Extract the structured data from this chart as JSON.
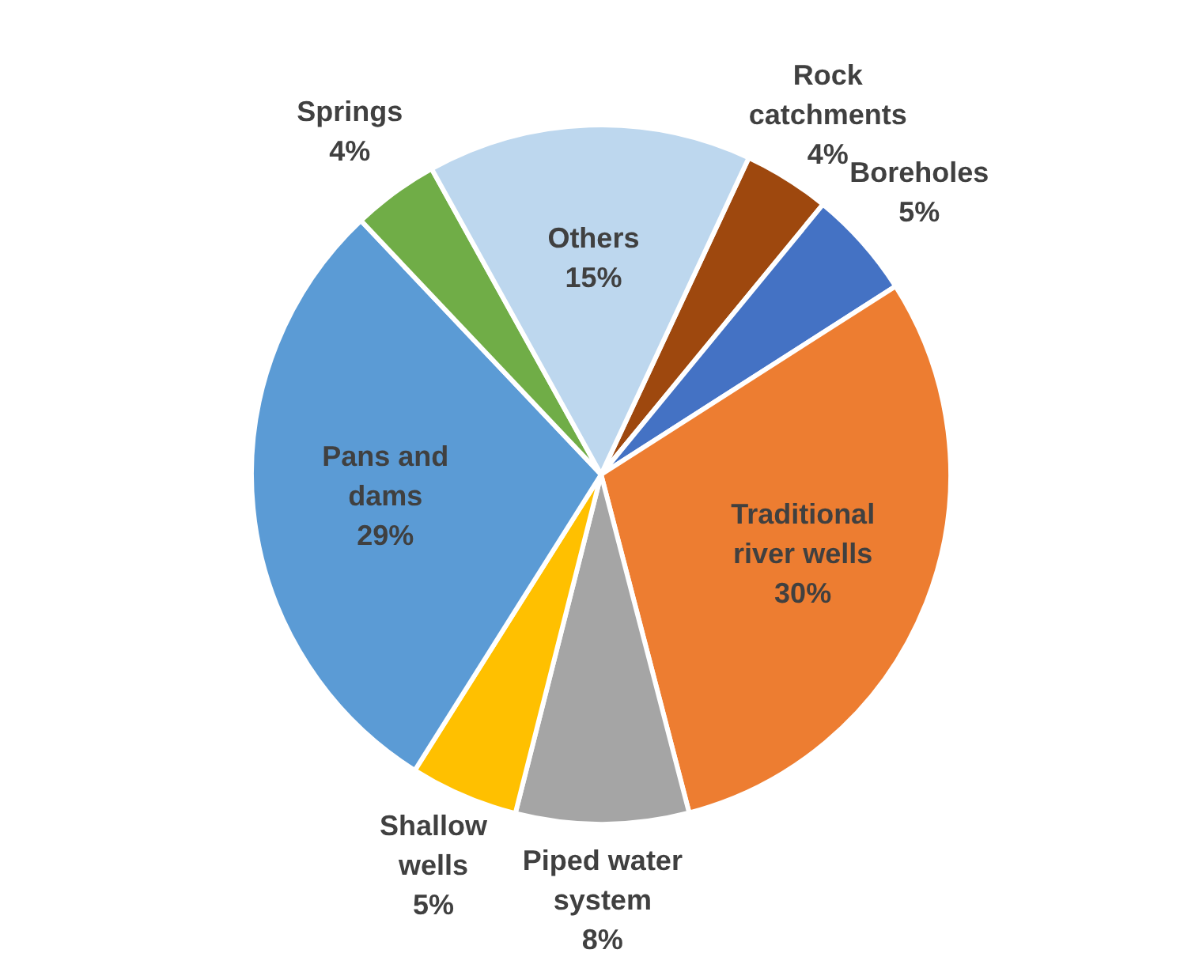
{
  "chart_data": {
    "type": "pie",
    "categories": [
      "Rock catchments",
      "Boreholes",
      "Traditional river wells",
      "Piped water system",
      "Shallow wells",
      "Pans and dams",
      "Springs",
      "Others"
    ],
    "values": [
      4,
      5,
      30,
      8,
      5,
      29,
      4,
      15
    ],
    "colors": [
      "#9e480e",
      "#4472c4",
      "#ed7d31",
      "#a5a5a5",
      "#ffc000",
      "#5b9bd5",
      "#70ad47",
      "#bdd7ee"
    ],
    "value_labels": [
      "4%",
      "5%",
      "30%",
      "8%",
      "5%",
      "29%",
      "4%",
      "15%"
    ]
  }
}
